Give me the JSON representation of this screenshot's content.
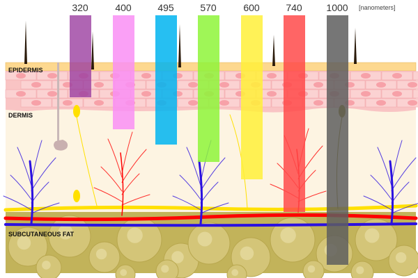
{
  "units_label": "[nanometers]",
  "layers": {
    "epidermis": "EPIDERMIS",
    "dermis": "DERMIS",
    "subcutaneous": "SUBCUTANEOUS FAT"
  },
  "wavelengths": [
    {
      "label": "320",
      "color": "#9b3fa0"
    },
    {
      "label": "400",
      "color": "#f98ff5"
    },
    {
      "label": "495",
      "color": "#00b4f0"
    },
    {
      "label": "570",
      "color": "#8ef53a"
    },
    {
      "label": "600",
      "color": "#fff03a"
    },
    {
      "label": "740",
      "color": "#ff4a4a"
    },
    {
      "label": "1000",
      "color": "#5e5e5e"
    }
  ],
  "colors": {
    "epidermis_top": "#fdd88f",
    "cells": "#f9c4c4",
    "dermis": "#fdf4e2",
    "fat": "#c2b35a",
    "artery": "#ff0000",
    "vein": "#2a10e0",
    "nerve": "#ffe000"
  }
}
